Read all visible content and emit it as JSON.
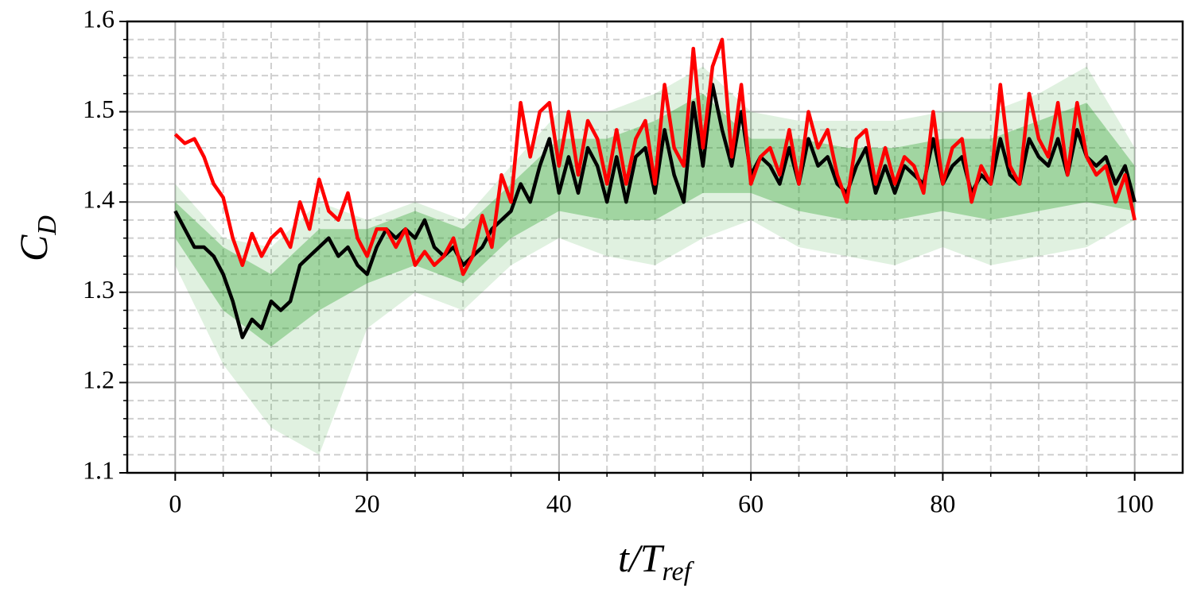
{
  "chart_data": {
    "type": "line",
    "xlabel": "t/T",
    "xlabel_sub": "ref",
    "ylabel": "C",
    "ylabel_sub": "D",
    "xlim": [
      -5,
      105
    ],
    "ylim": [
      1.1,
      1.6
    ],
    "xticks": [
      0,
      20,
      40,
      60,
      80,
      100
    ],
    "yticks": [
      1.1,
      1.2,
      1.3,
      1.4,
      1.5,
      1.6
    ],
    "xticks_minor": [
      5,
      10,
      15,
      25,
      30,
      35,
      45,
      50,
      55,
      65,
      70,
      75,
      85,
      90,
      95
    ],
    "yticks_minor": [
      1.12,
      1.14,
      1.16,
      1.18,
      1.22,
      1.24,
      1.26,
      1.28,
      1.32,
      1.34,
      1.36,
      1.38,
      1.42,
      1.44,
      1.46,
      1.48,
      1.52,
      1.54,
      1.56,
      1.58
    ],
    "grid": true,
    "x": [
      0,
      1,
      2,
      3,
      4,
      5,
      6,
      7,
      8,
      9,
      10,
      11,
      12,
      13,
      14,
      15,
      16,
      17,
      18,
      19,
      20,
      21,
      22,
      23,
      24,
      25,
      26,
      27,
      28,
      29,
      30,
      31,
      32,
      33,
      34,
      35,
      36,
      37,
      38,
      39,
      40,
      41,
      42,
      43,
      44,
      45,
      46,
      47,
      48,
      49,
      50,
      51,
      52,
      53,
      54,
      55,
      56,
      57,
      58,
      59,
      60,
      61,
      62,
      63,
      64,
      65,
      66,
      67,
      68,
      69,
      70,
      71,
      72,
      73,
      74,
      75,
      76,
      77,
      78,
      79,
      80,
      81,
      82,
      83,
      84,
      85,
      86,
      87,
      88,
      89,
      90,
      91,
      92,
      93,
      94,
      95,
      96,
      97,
      98,
      99,
      100
    ],
    "bands": [
      {
        "color": "#2ca02c",
        "opacity": 0.15,
        "x": [
          0,
          5,
          10,
          15,
          20,
          25,
          30,
          35,
          40,
          45,
          50,
          55,
          60,
          65,
          70,
          75,
          80,
          85,
          90,
          95,
          100
        ],
        "lower": [
          1.33,
          1.22,
          1.15,
          1.12,
          1.26,
          1.3,
          1.28,
          1.33,
          1.36,
          1.34,
          1.33,
          1.36,
          1.38,
          1.35,
          1.34,
          1.33,
          1.35,
          1.33,
          1.34,
          1.35,
          1.38
        ],
        "upper": [
          1.42,
          1.36,
          1.35,
          1.4,
          1.38,
          1.4,
          1.38,
          1.44,
          1.5,
          1.5,
          1.52,
          1.55,
          1.5,
          1.49,
          1.49,
          1.49,
          1.5,
          1.5,
          1.52,
          1.55,
          1.46
        ]
      },
      {
        "color": "#2ca02c",
        "opacity": 0.35,
        "x": [
          0,
          5,
          10,
          15,
          20,
          25,
          30,
          35,
          40,
          45,
          50,
          55,
          60,
          65,
          70,
          75,
          80,
          85,
          90,
          95,
          100
        ],
        "lower": [
          1.36,
          1.28,
          1.24,
          1.28,
          1.31,
          1.33,
          1.31,
          1.36,
          1.39,
          1.38,
          1.38,
          1.41,
          1.41,
          1.39,
          1.38,
          1.38,
          1.39,
          1.38,
          1.39,
          1.4,
          1.39
        ],
        "upper": [
          1.4,
          1.35,
          1.32,
          1.37,
          1.37,
          1.39,
          1.37,
          1.42,
          1.47,
          1.47,
          1.49,
          1.52,
          1.47,
          1.47,
          1.46,
          1.46,
          1.47,
          1.47,
          1.49,
          1.51,
          1.44
        ]
      }
    ],
    "series": [
      {
        "color": "#000000",
        "values": [
          1.39,
          1.37,
          1.35,
          1.35,
          1.34,
          1.32,
          1.29,
          1.25,
          1.27,
          1.26,
          1.29,
          1.28,
          1.29,
          1.33,
          1.34,
          1.35,
          1.36,
          1.34,
          1.35,
          1.33,
          1.32,
          1.35,
          1.37,
          1.36,
          1.37,
          1.36,
          1.38,
          1.35,
          1.34,
          1.35,
          1.33,
          1.34,
          1.35,
          1.37,
          1.38,
          1.39,
          1.42,
          1.4,
          1.44,
          1.47,
          1.41,
          1.45,
          1.41,
          1.46,
          1.44,
          1.4,
          1.45,
          1.4,
          1.45,
          1.46,
          1.41,
          1.48,
          1.43,
          1.4,
          1.51,
          1.44,
          1.53,
          1.48,
          1.44,
          1.5,
          1.43,
          1.45,
          1.44,
          1.42,
          1.46,
          1.42,
          1.47,
          1.44,
          1.45,
          1.42,
          1.41,
          1.44,
          1.46,
          1.41,
          1.44,
          1.41,
          1.44,
          1.43,
          1.42,
          1.47,
          1.42,
          1.44,
          1.45,
          1.41,
          1.43,
          1.42,
          1.47,
          1.43,
          1.42,
          1.47,
          1.45,
          1.44,
          1.47,
          1.43,
          1.48,
          1.45,
          1.44,
          1.45,
          1.42,
          1.44,
          1.4
        ]
      },
      {
        "color": "#ff0000",
        "values": [
          1.475,
          1.465,
          1.47,
          1.45,
          1.42,
          1.405,
          1.36,
          1.33,
          1.365,
          1.34,
          1.36,
          1.37,
          1.35,
          1.4,
          1.37,
          1.425,
          1.39,
          1.38,
          1.41,
          1.36,
          1.34,
          1.37,
          1.37,
          1.35,
          1.37,
          1.33,
          1.345,
          1.33,
          1.34,
          1.36,
          1.32,
          1.34,
          1.385,
          1.35,
          1.43,
          1.4,
          1.51,
          1.45,
          1.5,
          1.51,
          1.44,
          1.5,
          1.43,
          1.49,
          1.47,
          1.42,
          1.48,
          1.42,
          1.47,
          1.49,
          1.42,
          1.53,
          1.46,
          1.44,
          1.57,
          1.46,
          1.55,
          1.58,
          1.45,
          1.53,
          1.42,
          1.45,
          1.46,
          1.43,
          1.48,
          1.42,
          1.5,
          1.46,
          1.48,
          1.43,
          1.4,
          1.47,
          1.48,
          1.42,
          1.46,
          1.42,
          1.45,
          1.44,
          1.41,
          1.5,
          1.42,
          1.46,
          1.47,
          1.4,
          1.44,
          1.42,
          1.53,
          1.44,
          1.42,
          1.52,
          1.47,
          1.45,
          1.51,
          1.43,
          1.51,
          1.45,
          1.43,
          1.44,
          1.4,
          1.43,
          1.38
        ]
      }
    ]
  }
}
